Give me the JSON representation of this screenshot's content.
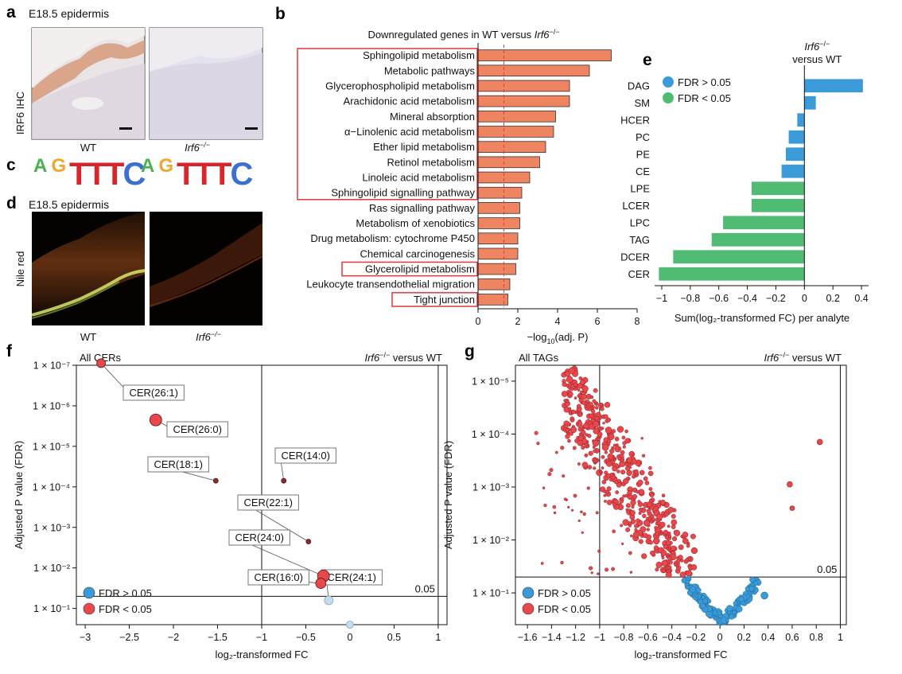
{
  "panels": {
    "a": {
      "letter": "a",
      "header": "E18.5 epidermis",
      "side_label": "IRF6 IHC",
      "wt_label": "WT",
      "ko_label": "Irf6",
      "ko_sup": "−/−"
    },
    "c": {
      "letter": "c",
      "logo_letters": [
        "A",
        "G",
        "T",
        "T",
        "T",
        "C",
        "A",
        "G",
        "T",
        "T",
        "T",
        "C"
      ]
    },
    "d": {
      "letter": "d",
      "header": "E18.5 epidermis",
      "side_label": "Nile red",
      "wt_label": "WT",
      "ko_label": "Irf6",
      "ko_sup": "−/−"
    },
    "colors": {
      "bar_b": "#ef8461",
      "highlight_box": "#e0393e",
      "fdr_high": "#3a9bd8",
      "fdr_low": "#4fbb73",
      "scatter_red": "#e8474b",
      "scatter_blue": "#3a9bd8",
      "dark_red": "#8e2a2a"
    }
  },
  "chart_data": [
    {
      "panel": "b",
      "type": "bar",
      "orientation": "horizontal",
      "title_prefix": "Downregulated genes in WT versus ",
      "title_gene": "Irf6",
      "title_sup": "−/−",
      "xlabel_prefix": "−log",
      "xlabel_sub": "10",
      "xlabel_suffix": "(adj. P)",
      "xlim": [
        0,
        8
      ],
      "xticks": [
        "0",
        "2",
        "4",
        "6",
        "8"
      ],
      "reference_line": 1.3,
      "categories": [
        "Sphingolipid metabolism",
        "Metabolic pathways",
        "Glycerophospholipid metabolism",
        "Arachidonic acid metabolism",
        "Mineral absorption",
        "α−Linolenic acid metabolism",
        "Ether lipid metabolism",
        "Retinol metabolism",
        "Linoleic acid metabolism",
        "Sphingolipid signalling pathway",
        "Ras signalling pathway",
        "Metabolism of xenobiotics",
        "Drug metabolism: cytochrome P450",
        "Chemical carcinogenesis",
        "Glycerolipid metabolism",
        "Leukocyte transendothelial migration",
        "Tight junction"
      ],
      "values": [
        6.7,
        5.6,
        4.6,
        4.6,
        3.9,
        3.8,
        3.4,
        3.1,
        2.6,
        2.2,
        2.1,
        2.1,
        2.0,
        2.0,
        1.9,
        1.6,
        1.5
      ],
      "highlight_groups": [
        [
          0,
          9
        ],
        [
          14,
          14
        ],
        [
          16,
          16
        ]
      ]
    },
    {
      "panel": "e",
      "type": "bar",
      "orientation": "horizontal",
      "title_gene": "Irf6",
      "title_sup": "−/−",
      "title_line2": "versus WT",
      "xlabel": "Sum(log₂-transformed FC) per analyte",
      "xlim": [
        -1.05,
        0.45
      ],
      "xticks": [
        "−1",
        "−0.8",
        "−0.6",
        "−0.4",
        "−0.2",
        "0",
        "0.2",
        "0.4"
      ],
      "xtick_values": [
        -1,
        -0.8,
        -0.6,
        -0.4,
        -0.2,
        0,
        0.2,
        0.4
      ],
      "legend": [
        "FDR > 0.05",
        "FDR < 0.05"
      ],
      "legend_position": "top-left",
      "categories": [
        "DAG",
        "SM",
        "HCER",
        "PC",
        "PE",
        "CE",
        "LPE",
        "LCER",
        "LPC",
        "TAG",
        "DCER",
        "CER"
      ],
      "values": [
        0.41,
        0.08,
        -0.05,
        -0.11,
        -0.13,
        -0.16,
        -0.37,
        -0.37,
        -0.57,
        -0.65,
        -0.92,
        -1.02
      ],
      "fdr_group": [
        "high",
        "high",
        "high",
        "high",
        "high",
        "high",
        "low",
        "low",
        "low",
        "low",
        "low",
        "low"
      ]
    },
    {
      "panel": "f",
      "type": "scatter",
      "title": "All CERs",
      "title_right_gene": "Irf6",
      "title_right_sup": "−/−",
      "title_right_suffix": " versus WT",
      "xlabel": "log₂-transformed FC",
      "ylabel": "Adjusted P value (FDR)",
      "xlim": [
        -3.1,
        1.1
      ],
      "xticks": [
        "−3",
        "−2.5",
        "−2",
        "−1.5",
        "−1",
        "−0.5",
        "0",
        "0.5",
        "1"
      ],
      "xtick_values": [
        -3,
        -2.5,
        -2,
        -1.5,
        -1,
        -0.5,
        0,
        0.5,
        1
      ],
      "yscale": "log",
      "ylim_log10": [
        -7,
        -0.6
      ],
      "yticks": [
        "1 × 10⁻⁷",
        "1 × 10⁻⁶",
        "1 × 10⁻⁵",
        "1 × 10⁻⁴",
        "1 × 10⁻³",
        "1 × 10⁻²",
        "1 × 10⁻¹"
      ],
      "ytick_log10": [
        -7,
        -6,
        -5,
        -4,
        -3,
        -2,
        -1
      ],
      "threshold_label": "0.05",
      "threshold_log10": -1.3,
      "vlines": [
        -1,
        1
      ],
      "legend": [
        "FDR > 0.05",
        "FDR < 0.05"
      ],
      "legend_position": "bottom-left",
      "points": [
        {
          "x": -2.82,
          "y": -7.05,
          "size": 9,
          "fdr": "low",
          "label": "CER(26:1)"
        },
        {
          "x": -2.2,
          "y": -5.65,
          "size": 13,
          "fdr": "low",
          "label": "CER(26:0)"
        },
        {
          "x": -1.52,
          "y": -4.15,
          "size": 4,
          "fdr": "low",
          "label": "CER(18:1)"
        },
        {
          "x": -0.75,
          "y": -4.15,
          "size": 4,
          "fdr": "low",
          "label": "CER(14:0)"
        },
        {
          "x": -0.47,
          "y": -2.65,
          "size": 4,
          "fdr": "low",
          "label": "CER(22:1)"
        },
        {
          "x": -0.3,
          "y": -1.8,
          "size": 13,
          "fdr": "low",
          "label": "CER(24:0)"
        },
        {
          "x": -0.33,
          "y": -1.62,
          "size": 11,
          "fdr": "low",
          "label": "CER(16:0)"
        },
        {
          "x": -0.24,
          "y": -1.2,
          "size": 9,
          "fdr": "high",
          "label": "CER(24:1)"
        },
        {
          "x": 0.0,
          "y": -0.6,
          "size": 7,
          "fdr": "high",
          "label": ""
        }
      ]
    },
    {
      "panel": "g",
      "type": "scatter",
      "title": "All TAGs",
      "title_right_gene": "Irf6",
      "title_right_sup": "−/−",
      "title_right_suffix": " versus WT",
      "xlabel": "log₂-transformed FC",
      "ylabel": "Adjusted P value (FDR)",
      "xlim": [
        -1.7,
        1.05
      ],
      "xticks": [
        "−1.6",
        "−1.4",
        "−1.2",
        "−1",
        "−0.8",
        "−0.6",
        "−0.4",
        "−0.2",
        "0",
        "0.2",
        "0.4",
        "0.6",
        "0.8",
        "1"
      ],
      "xtick_values": [
        -1.6,
        -1.4,
        -1.2,
        -1,
        -0.8,
        -0.6,
        -0.4,
        -0.2,
        0,
        0.2,
        0.4,
        0.6,
        0.8,
        1
      ],
      "yscale": "log",
      "ylim_log10": [
        -5.3,
        -0.4
      ],
      "yticks": [
        "1 × 10⁻⁵",
        "1 × 10⁻⁴",
        "1 × 10⁻³",
        "1 × 10⁻²",
        "1 × 10⁻¹"
      ],
      "ytick_log10": [
        -5,
        -4,
        -3,
        -2,
        -1
      ],
      "threshold_label": "0.05",
      "threshold_log10": -1.3,
      "vlines": [
        -1,
        1
      ],
      "legend": [
        "FDR > 0.05",
        "FDR < 0.05"
      ],
      "legend_position": "bottom-left",
      "outliers": [
        {
          "x": 0.83,
          "y": -3.85,
          "size": 5,
          "fdr": "low"
        },
        {
          "x": 0.58,
          "y": -3.05,
          "size": 5,
          "fdr": "low"
        },
        {
          "x": 0.6,
          "y": -2.6,
          "size": 4,
          "fdr": "low"
        },
        {
          "x": 0.27,
          "y": -1.25,
          "size": 5,
          "fdr": "high"
        },
        {
          "x": 0.37,
          "y": -0.95,
          "size": 7,
          "fdr": "high"
        }
      ]
    }
  ]
}
